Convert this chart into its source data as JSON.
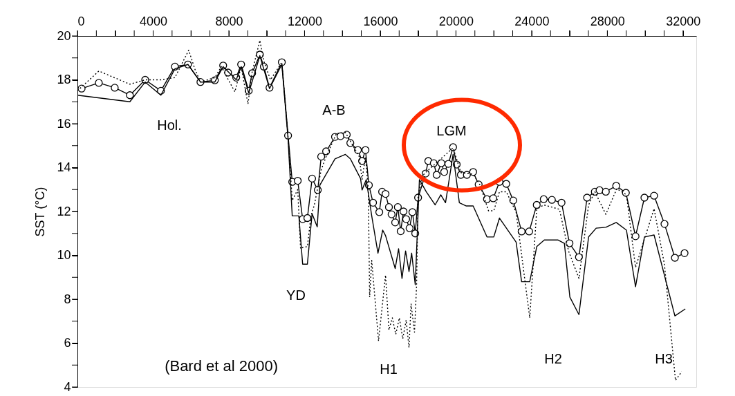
{
  "chart_data": {
    "type": "line",
    "ylabel": "SST (°C)",
    "xlim": [
      0,
      32700
    ],
    "ylim": [
      4,
      20
    ],
    "xticks": [
      0,
      {
        "value": 1000,
        "label": null
      },
      {
        "value": 2000,
        "label": null
      },
      {
        "value": 3000,
        "label": null
      },
      4000,
      {
        "value": 5000,
        "label": null
      },
      {
        "value": 6000,
        "label": null
      },
      {
        "value": 7000,
        "label": null
      },
      8000,
      {
        "value": 9000,
        "label": null
      },
      {
        "value": 10000,
        "label": null
      },
      {
        "value": 11000,
        "label": null
      },
      12000,
      {
        "value": 13000,
        "label": null
      },
      {
        "value": 14000,
        "label": null
      },
      {
        "value": 15000,
        "label": null
      },
      16000,
      {
        "value": 17000,
        "label": null
      },
      {
        "value": 18000,
        "label": null
      },
      {
        "value": 19000,
        "label": null
      },
      20000,
      {
        "value": 21000,
        "label": null
      },
      {
        "value": 22000,
        "label": null
      },
      {
        "value": 23000,
        "label": null
      },
      24000,
      {
        "value": 25000,
        "label": null
      },
      {
        "value": 26000,
        "label": null
      },
      {
        "value": 27000,
        "label": null
      },
      28000,
      {
        "value": 29000,
        "label": null
      },
      {
        "value": 30000,
        "label": null
      },
      {
        "value": 31000,
        "label": null
      },
      32000
    ],
    "yticks": [
      4,
      {
        "value": 5,
        "label": null
      },
      6,
      {
        "value": 7,
        "label": null
      },
      8,
      {
        "value": 9,
        "label": null
      },
      10,
      {
        "value": 11,
        "label": null
      },
      12,
      {
        "value": 13,
        "label": null
      },
      14,
      {
        "value": 15,
        "label": null
      },
      16,
      {
        "value": 17,
        "label": null
      },
      18,
      {
        "value": 19,
        "label": null
      },
      20
    ],
    "grid": false,
    "series": [
      {
        "color": "#000000",
        "marker": "circle",
        "line_style": "solid",
        "x": [
          220,
          1130,
          1970,
          2770,
          3580,
          4410,
          5150,
          5840,
          6500,
          7260,
          7700,
          7960,
          8390,
          8650,
          9050,
          9230,
          9640,
          9850,
          10150,
          10800,
          11130,
          11350,
          11640,
          11900,
          12150,
          12400,
          12700,
          12880,
          13140,
          13610,
          13900,
          14230,
          14420,
          14820,
          15040,
          15220,
          15400,
          15620,
          15950,
          16100,
          16280,
          16460,
          16600,
          16790,
          16930,
          17080,
          17230,
          17370,
          17550,
          17700,
          17850,
          18000,
          18400,
          18540,
          18830,
          18980,
          19230,
          19380,
          19600,
          19850,
          20040,
          20260,
          20580,
          20910,
          21200,
          21640,
          21970,
          22300,
          22660,
          23030,
          23470,
          23870,
          24270,
          24640,
          25070,
          25580,
          26000,
          26500,
          26930,
          27340,
          27590,
          27920,
          28470,
          28980,
          29490,
          29960,
          30470,
          31020,
          31570,
          32080
        ],
        "values": [
          17.6,
          17.86,
          17.64,
          17.3,
          18.0,
          17.5,
          18.6,
          18.7,
          17.9,
          17.98,
          18.65,
          18.33,
          18.1,
          18.7,
          17.5,
          18.3,
          19.15,
          18.6,
          17.64,
          18.8,
          15.46,
          13.35,
          13.4,
          11.65,
          11.7,
          13.5,
          12.98,
          14.5,
          14.74,
          15.4,
          15.43,
          15.5,
          15.12,
          14.8,
          14.3,
          14.8,
          13.2,
          12.4,
          11.97,
          12.9,
          12.8,
          12.2,
          11.87,
          11.5,
          12.2,
          11.1,
          12.0,
          11.65,
          11.24,
          11.97,
          11.0,
          12.63,
          13.73,
          14.3,
          14.2,
          13.67,
          14.2,
          13.8,
          14.17,
          14.93,
          14.14,
          13.67,
          13.67,
          13.8,
          13.23,
          12.56,
          12.6,
          13.35,
          13.26,
          12.5,
          11.09,
          11.09,
          12.3,
          12.56,
          12.53,
          12.4,
          10.55,
          9.92,
          12.63,
          12.9,
          12.97,
          12.9,
          13.17,
          12.85,
          10.87,
          12.63,
          12.72,
          11.43,
          9.89,
          10.1
        ]
      },
      {
        "color": "#000000",
        "marker": "none",
        "line_style": "dotted",
        "x": [
          0,
          1130,
          2770,
          3580,
          4410,
          5150,
          5880,
          6200,
          6500,
          7260,
          7600,
          8320,
          8650,
          9010,
          9230,
          9640,
          9850,
          10200,
          10800,
          11130,
          11350,
          11640,
          11790,
          11900,
          12150,
          12340,
          12520,
          12880,
          13140,
          13690,
          14160,
          14890,
          15040,
          15220,
          15370,
          15440,
          15550,
          15910,
          16280,
          16460,
          16640,
          16820,
          17010,
          17190,
          17370,
          17520,
          17630,
          17810,
          17920,
          18000,
          18280,
          18430,
          19850,
          20260,
          20910,
          21280,
          21720,
          22000,
          22300,
          22660,
          23180,
          23900,
          24270,
          24640,
          25470,
          25950,
          26500,
          27010,
          27340,
          27920,
          28500,
          29010,
          29490,
          30470,
          31020,
          31600,
          31930
        ],
        "values": [
          17.5,
          18.4,
          17.8,
          18.0,
          18.0,
          18.1,
          19.35,
          18.5,
          17.9,
          18.1,
          18.6,
          17.45,
          18.6,
          16.9,
          18.35,
          19.8,
          18.85,
          18.0,
          18.8,
          15.4,
          12.5,
          13.0,
          10.3,
          10.36,
          10.4,
          11.8,
          12.3,
          13.9,
          14.5,
          15.56,
          15.6,
          14.5,
          13.45,
          14.5,
          13.0,
          8.1,
          9.77,
          6.1,
          9.1,
          6.6,
          7.15,
          6.4,
          7.15,
          6.2,
          7.05,
          5.8,
          7.78,
          6.5,
          8.63,
          12.8,
          13.67,
          13.8,
          14.9,
          13.77,
          13.7,
          13.2,
          12.03,
          12.03,
          12.9,
          12.9,
          11.97,
          7.15,
          12.1,
          12.3,
          12.1,
          10.2,
          8.95,
          12.3,
          12.9,
          11.87,
          13.04,
          12.76,
          9.45,
          12.13,
          9.57,
          4.3,
          4.7
        ]
      },
      {
        "color": "#000000",
        "marker": "none",
        "line_style": "solid",
        "x": [
          0,
          2770,
          3580,
          4410,
          5150,
          5840,
          6500,
          7260,
          7700,
          8390,
          8650,
          9050,
          9640,
          10150,
          10800,
          11130,
          11350,
          11700,
          11900,
          12150,
          12400,
          12670,
          12810,
          13610,
          14160,
          14420,
          14960,
          15040,
          15260,
          15550,
          15880,
          16130,
          16280,
          16790,
          16970,
          17150,
          17340,
          17520,
          17660,
          17850,
          18070,
          18430,
          18900,
          19200,
          19450,
          19850,
          20180,
          20550,
          20910,
          21640,
          22000,
          22300,
          23180,
          23470,
          23900,
          24270,
          24670,
          25400,
          25730,
          26020,
          26500,
          27010,
          27410,
          27920,
          28470,
          29010,
          29490,
          29960,
          30470,
          31570,
          32120
        ],
        "values": [
          17.3,
          17.0,
          17.9,
          17.3,
          18.5,
          18.7,
          17.9,
          17.9,
          18.6,
          18.0,
          18.6,
          17.4,
          19.1,
          17.6,
          18.7,
          15.3,
          11.8,
          11.8,
          9.6,
          9.6,
          11.9,
          11.3,
          13.2,
          14.4,
          14.6,
          14.4,
          13.5,
          12.98,
          13.45,
          11.8,
          10.1,
          11.15,
          10.9,
          9.4,
          10.3,
          8.95,
          10.2,
          9.26,
          10.1,
          8.66,
          13.45,
          12.9,
          12.3,
          12.76,
          12.4,
          14.6,
          12.4,
          12.25,
          12.25,
          10.84,
          10.84,
          11.7,
          10.6,
          8.8,
          8.8,
          10.4,
          10.7,
          10.7,
          10.55,
          8.1,
          7.3,
          10.84,
          11.24,
          11.28,
          11.5,
          11.15,
          8.57,
          10.84,
          10.93,
          7.24,
          7.56
        ]
      }
    ],
    "annotations": [
      "Hol.",
      "A-B",
      "YD",
      "LGM",
      "H1",
      "H2",
      "H3",
      "(Bard et al 2000)"
    ]
  }
}
